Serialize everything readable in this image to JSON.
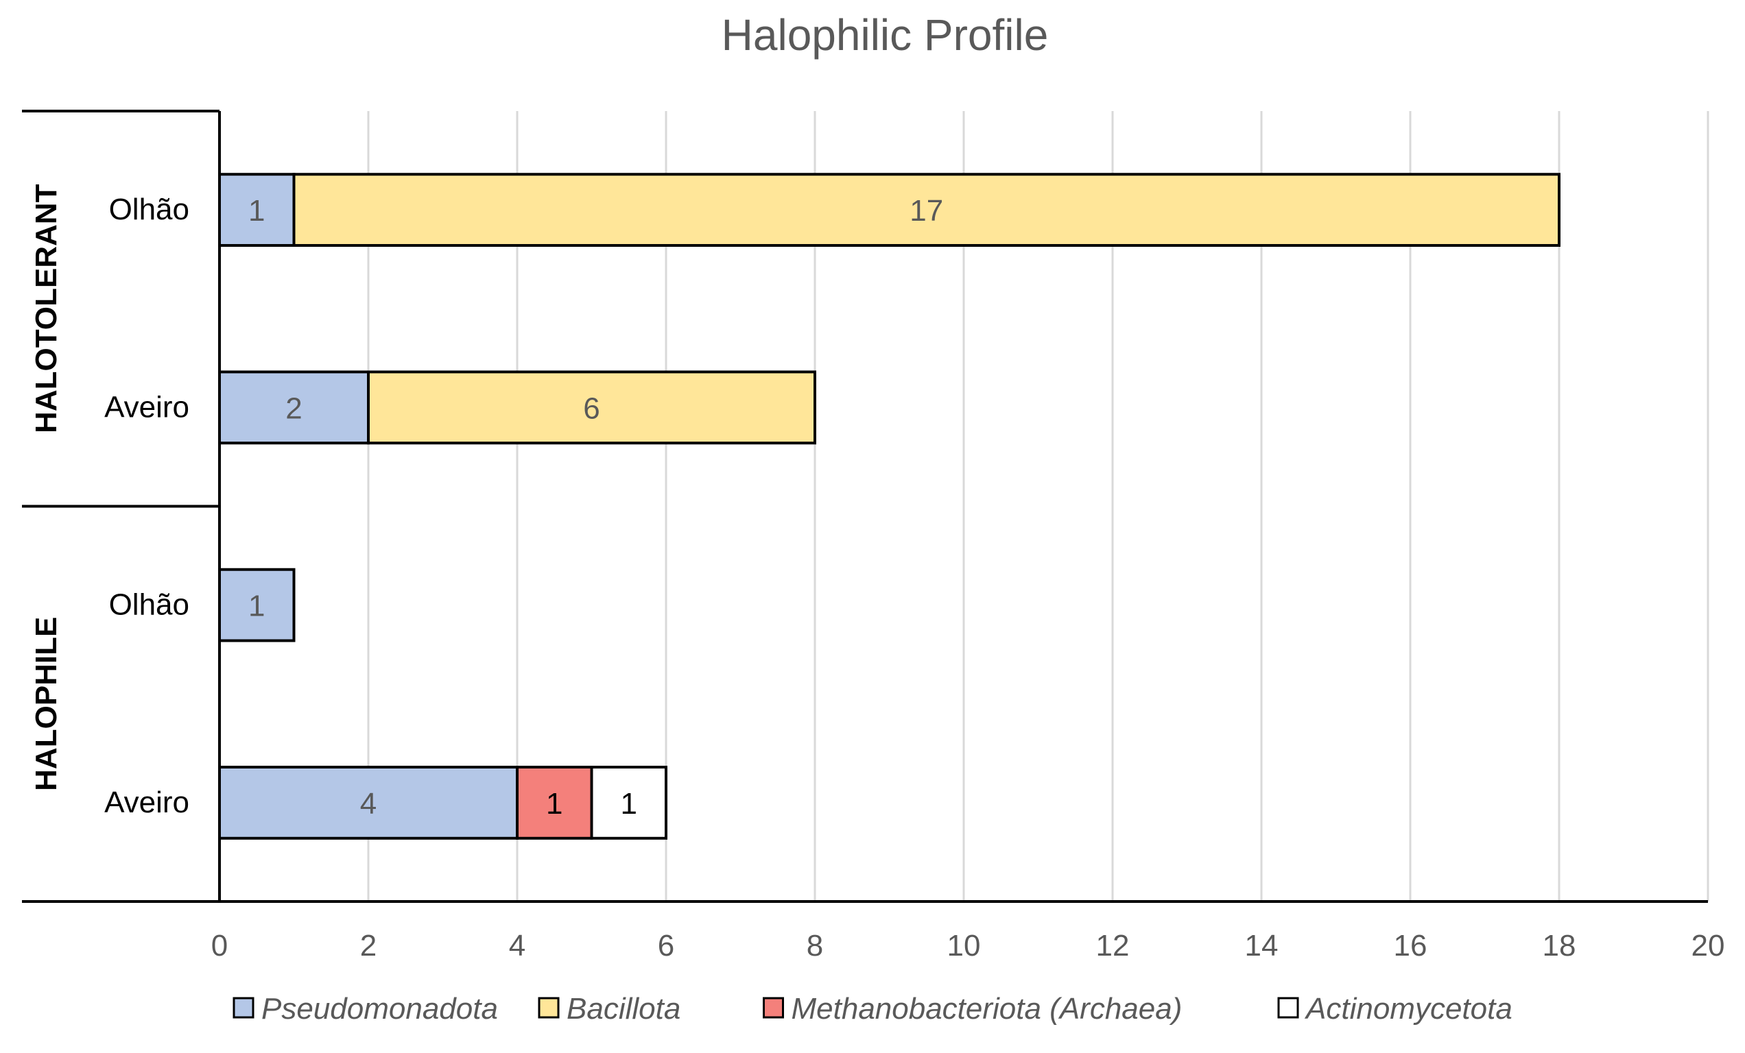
{
  "chart_data": {
    "type": "bar",
    "orientation": "horizontal",
    "stacked": true,
    "title": "Halophilic Profile",
    "xlim": [
      0,
      20
    ],
    "xticks": [
      0,
      2,
      4,
      6,
      8,
      10,
      12,
      14,
      16,
      18,
      20
    ],
    "grid": true,
    "legend_position": "bottom",
    "groups": [
      {
        "name": "HALOTOLERANT",
        "categories": [
          "Olhão",
          "Aveiro"
        ]
      },
      {
        "name": "HALOPHILE",
        "categories": [
          "Olhão",
          "Aveiro"
        ]
      }
    ],
    "series": [
      {
        "name": "Pseudomonadota",
        "color": "#b4c7e7",
        "label_color": "#595959",
        "values": [
          1,
          2,
          1,
          4
        ]
      },
      {
        "name": "Bacillota",
        "color": "#ffe699",
        "label_color": "#595959",
        "values": [
          17,
          6,
          0,
          0
        ]
      },
      {
        "name": "Methanobacteriota (Archaea)",
        "color": "#f4807b",
        "label_color": "#000000",
        "values": [
          0,
          0,
          0,
          1
        ]
      },
      {
        "name": "Actinomycetota",
        "color": "#ffffff",
        "label_color": "#000000",
        "values": [
          0,
          0,
          0,
          1
        ]
      }
    ]
  }
}
